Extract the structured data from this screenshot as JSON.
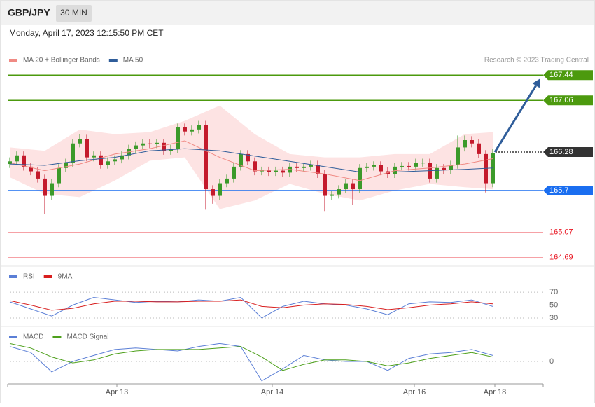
{
  "header": {
    "symbol": "GBP/JPY",
    "interval": "30 MIN",
    "timestamp": "Monday, April 17, 2023 12:15:50 PM CET"
  },
  "chart_data": [
    {
      "type": "candlestick",
      "credit": "Research © 2023 Trading Central",
      "xlim": [
        -0.3,
        76.2
      ],
      "ylim": [
        164.58,
        168.15
      ],
      "up_color": "#3c9a2a",
      "down_color": "#c41a2c",
      "candles": {
        "x": [
          0,
          1,
          2,
          3,
          4,
          5,
          6,
          7,
          8,
          9,
          10,
          11,
          12,
          13,
          14,
          15,
          16,
          17,
          18,
          19,
          20,
          21,
          22,
          23,
          24,
          25,
          26,
          27,
          28,
          29,
          30,
          31,
          32,
          33,
          34,
          35,
          36,
          37,
          38,
          39,
          40,
          41,
          42,
          43,
          44,
          45,
          46,
          47,
          48,
          49,
          50,
          51,
          52,
          53,
          54,
          55,
          56,
          57,
          58,
          59,
          60,
          61,
          62,
          63,
          64,
          65,
          66,
          67,
          68,
          69
        ],
        "open": [
          166.1,
          166.14,
          166.23,
          166.06,
          165.99,
          165.88,
          165.62,
          165.81,
          166.04,
          166.12,
          166.41,
          166.48,
          166.2,
          166.23,
          166.09,
          166.14,
          166.17,
          166.23,
          166.33,
          166.38,
          166.41,
          166.4,
          166.42,
          166.3,
          166.33,
          166.65,
          166.59,
          166.62,
          166.69,
          165.72,
          165.62,
          165.81,
          165.88,
          166.06,
          166.25,
          166.14,
          165.99,
          166.0,
          165.98,
          166.0,
          165.97,
          166.06,
          166.04,
          166.06,
          166.09,
          165.95,
          165.62,
          165.64,
          165.72,
          165.81,
          165.72,
          166.04,
          166.06,
          166.08,
          165.99,
          165.95,
          166.06,
          166.07,
          166.06,
          166.12,
          166.12,
          165.88,
          166.04,
          166.01,
          166.09,
          166.35,
          166.46,
          166.41,
          166.25,
          165.81
        ],
        "high": [
          166.2,
          166.29,
          166.29,
          166.12,
          166.05,
          165.94,
          165.87,
          166.1,
          166.18,
          166.47,
          166.55,
          166.54,
          166.29,
          166.29,
          166.2,
          166.23,
          166.29,
          166.39,
          166.44,
          166.47,
          166.47,
          166.48,
          166.48,
          166.39,
          166.71,
          166.71,
          166.68,
          166.75,
          166.75,
          165.78,
          165.87,
          165.94,
          166.12,
          166.31,
          166.31,
          166.2,
          166.06,
          166.06,
          166.06,
          166.06,
          166.12,
          166.12,
          166.12,
          166.15,
          166.15,
          166.01,
          165.7,
          165.78,
          165.87,
          165.87,
          166.1,
          166.12,
          166.14,
          166.14,
          166.05,
          166.12,
          166.13,
          166.13,
          166.18,
          166.18,
          166.18,
          166.1,
          166.1,
          166.15,
          166.53,
          166.53,
          166.52,
          166.47,
          166.31,
          166.33
        ],
        "low": [
          166.04,
          166.08,
          166.0,
          165.93,
          165.82,
          165.35,
          165.56,
          165.75,
          165.98,
          166.06,
          166.35,
          166.14,
          166.14,
          166.03,
          166.03,
          166.08,
          166.11,
          166.17,
          166.27,
          166.32,
          166.34,
          166.34,
          166.24,
          166.24,
          166.27,
          166.53,
          166.53,
          166.56,
          165.41,
          165.5,
          165.56,
          165.75,
          165.82,
          166.0,
          166.08,
          165.93,
          165.93,
          165.92,
          165.92,
          165.91,
          165.91,
          165.98,
          165.98,
          166.0,
          165.89,
          165.39,
          165.56,
          165.58,
          165.66,
          165.48,
          165.66,
          165.98,
          166.0,
          165.93,
          165.89,
          165.89,
          166.0,
          166.0,
          166.0,
          166.06,
          165.82,
          165.82,
          165.95,
          165.95,
          166.03,
          166.29,
          166.35,
          166.19,
          165.67,
          165.75
        ],
        "close": [
          166.14,
          166.23,
          166.06,
          165.99,
          165.88,
          165.62,
          165.81,
          166.04,
          166.12,
          166.41,
          166.48,
          166.2,
          166.23,
          166.09,
          166.14,
          166.17,
          166.23,
          166.33,
          166.38,
          166.41,
          166.4,
          166.42,
          166.3,
          166.33,
          166.65,
          166.59,
          166.62,
          166.69,
          165.72,
          165.62,
          165.81,
          165.88,
          166.06,
          166.25,
          166.14,
          165.99,
          166.0,
          165.98,
          166.0,
          165.97,
          166.06,
          166.04,
          166.06,
          166.09,
          165.95,
          165.62,
          165.64,
          165.72,
          165.81,
          165.72,
          166.04,
          166.06,
          166.08,
          165.99,
          165.95,
          166.06,
          166.07,
          166.06,
          166.12,
          166.12,
          165.88,
          166.04,
          166.01,
          166.09,
          166.35,
          166.46,
          166.41,
          166.25,
          165.81,
          166.27
        ]
      },
      "series": [
        {
          "name": "MA 20 + Bollinger Bands",
          "color": "#f08a84",
          "band_color": "#fde3e3",
          "x": [
            0,
            5,
            10,
            15,
            20,
            25,
            30,
            35,
            40,
            45,
            50,
            55,
            60,
            65,
            69
          ],
          "values": [
            166.12,
            166.0,
            166.1,
            166.25,
            166.33,
            166.45,
            166.2,
            166.0,
            166.02,
            165.95,
            165.85,
            166.0,
            166.04,
            166.1,
            166.18
          ],
          "upper": [
            166.35,
            166.3,
            166.62,
            166.55,
            166.58,
            166.75,
            166.98,
            166.55,
            166.25,
            166.2,
            166.2,
            166.25,
            166.25,
            166.55,
            166.58
          ],
          "lower": [
            165.9,
            165.65,
            165.6,
            165.85,
            166.15,
            166.2,
            165.42,
            165.55,
            165.8,
            165.65,
            165.55,
            165.7,
            165.8,
            165.75,
            165.72
          ]
        },
        {
          "name": "MA 50",
          "color": "#2f5d9a",
          "x": [
            0,
            5,
            10,
            15,
            20,
            25,
            30,
            35,
            40,
            45,
            50,
            55,
            60,
            65,
            69
          ],
          "values": [
            166.1,
            166.08,
            166.15,
            166.2,
            166.3,
            166.33,
            166.3,
            166.22,
            166.14,
            166.06,
            165.98,
            165.98,
            166.0,
            166.02,
            166.04
          ]
        }
      ],
      "levels": [
        {
          "value": 167.44,
          "color": "#4c9a0e",
          "style": "tag"
        },
        {
          "value": 167.06,
          "color": "#4c9a0e",
          "style": "tag"
        },
        {
          "value": 166.28,
          "color": "#333333",
          "style": "current"
        },
        {
          "value": 165.7,
          "color": "#1a6ef0",
          "style": "tag"
        },
        {
          "value": 165.07,
          "color": "#e8121e",
          "style": "plain"
        },
        {
          "value": 164.69,
          "color": "#e8121e",
          "style": "plain"
        }
      ],
      "projection": {
        "x": [
          69.3,
          75.8
        ],
        "y": [
          166.28,
          167.39
        ],
        "color": "#2f5d9a"
      }
    },
    {
      "type": "line",
      "xlim": [
        -0.3,
        76.2
      ],
      "ylim": [
        18,
        107
      ],
      "yticks": [
        30,
        50,
        70
      ],
      "x": [
        0,
        3,
        6,
        9,
        12,
        15,
        18,
        21,
        24,
        27,
        30,
        33,
        36,
        39,
        42,
        45,
        48,
        51,
        54,
        57,
        60,
        63,
        66,
        69
      ],
      "series": [
        {
          "name": "RSI",
          "color": "#5b7fd6",
          "values": [
            55,
            44,
            33,
            50,
            62,
            58,
            54,
            56,
            55,
            58,
            56,
            62,
            30,
            48,
            56,
            52,
            50,
            44,
            35,
            52,
            55,
            54,
            58,
            48
          ]
        },
        {
          "name": "9MA",
          "color": "#d81e1e",
          "values": [
            57,
            50,
            42,
            45,
            52,
            56,
            56,
            55,
            55,
            56,
            56,
            58,
            48,
            46,
            50,
            52,
            51,
            48,
            43,
            46,
            50,
            52,
            55,
            52
          ]
        }
      ]
    },
    {
      "type": "line",
      "xlim": [
        -0.3,
        76.2
      ],
      "ylim": [
        -0.15,
        0.22
      ],
      "yticks": [
        0
      ],
      "x": [
        0,
        3,
        6,
        9,
        12,
        15,
        18,
        21,
        24,
        27,
        30,
        33,
        36,
        39,
        42,
        45,
        48,
        51,
        54,
        57,
        60,
        63,
        66,
        69
      ],
      "series": [
        {
          "name": "MACD",
          "color": "#5b7fd6",
          "values": [
            0.1,
            0.06,
            -0.07,
            0.0,
            0.04,
            0.08,
            0.09,
            0.08,
            0.07,
            0.1,
            0.12,
            0.1,
            -0.13,
            -0.05,
            0.04,
            0.01,
            0.0,
            0.0,
            -0.06,
            0.02,
            0.05,
            0.06,
            0.08,
            0.04
          ]
        },
        {
          "name": "MACD Signal",
          "color": "#4ea01c",
          "values": [
            0.12,
            0.09,
            0.03,
            -0.01,
            0.01,
            0.05,
            0.07,
            0.08,
            0.08,
            0.08,
            0.09,
            0.1,
            0.03,
            -0.06,
            -0.02,
            0.01,
            0.01,
            0.0,
            -0.03,
            -0.01,
            0.02,
            0.04,
            0.06,
            0.03
          ]
        }
      ],
      "xticks": [
        {
          "value": 15.3,
          "label": "Apr 13"
        },
        {
          "value": 37.5,
          "label": "Apr 14"
        },
        {
          "value": 57.8,
          "label": "Apr 16"
        },
        {
          "value": 69.3,
          "label": "Apr 18"
        }
      ]
    }
  ]
}
